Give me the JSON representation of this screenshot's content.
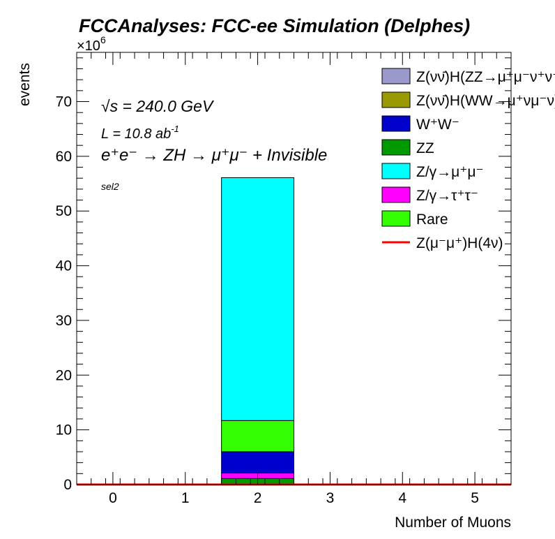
{
  "chart_data": {
    "type": "bar",
    "stacked": true,
    "title": "FCCAnalyses: FCC-ee Simulation (Delphes)",
    "xlabel": "Number of Muons",
    "ylabel": "events",
    "y_multiplier_base": "×10",
    "y_multiplier_exp": "6",
    "xlim": [
      -0.5,
      5.5
    ],
    "ylim": [
      0,
      79
    ],
    "x_ticks": [
      0,
      1,
      2,
      3,
      4,
      5
    ],
    "x_tick_labels": [
      "0",
      "1",
      "2",
      "3",
      "4",
      "5"
    ],
    "y_ticks": [
      0,
      10,
      20,
      30,
      40,
      50,
      60,
      70
    ],
    "y_tick_labels": [
      "0",
      "10",
      "20",
      "30",
      "40",
      "50",
      "60",
      "70"
    ],
    "bins": [
      [
        -0.5,
        0.5
      ],
      [
        0.5,
        1.5
      ],
      [
        1.5,
        2.5
      ],
      [
        2.5,
        3.5
      ],
      [
        3.5,
        4.5
      ],
      [
        4.5,
        5.5
      ]
    ],
    "stack_order": [
      "ZZ",
      "Z/γ→τ⁺τ⁻",
      "W⁺W⁻",
      "Rare",
      "Z/γ→μ⁺μ⁻"
    ],
    "series": [
      {
        "name": "Z(νν̄)H(ZZ→μ⁺μ⁻ν⁺ν⁻)",
        "color": "#9999cc",
        "values": [
          0,
          0,
          0,
          0,
          0,
          0
        ]
      },
      {
        "name": "Z(νν̄)H(WW→μ⁺νμ⁻ν)",
        "color": "#999900",
        "values": [
          0,
          0,
          0,
          0,
          0,
          0
        ]
      },
      {
        "name": "W⁺W⁻",
        "color": "#0000cc",
        "values": [
          0,
          0,
          3.9,
          0,
          0,
          0
        ]
      },
      {
        "name": "ZZ",
        "color": "#009900",
        "values": [
          0,
          0,
          1.1,
          0,
          0,
          0
        ]
      },
      {
        "name": "Z/γ→μ⁺μ⁻",
        "color": "#00ffff",
        "values": [
          0,
          0,
          44.4,
          0,
          0,
          0
        ]
      },
      {
        "name": "Z/γ→τ⁺τ⁻",
        "color": "#ff00ff",
        "values": [
          0,
          0,
          1.0,
          0,
          0,
          0
        ]
      },
      {
        "name": "Rare",
        "color": "#33ff00",
        "values": [
          0,
          0,
          5.7,
          0,
          0,
          0
        ]
      }
    ],
    "signal": {
      "name": "Z(μ⁻μ⁺)H(4ν)",
      "color": "#ff0000",
      "values": [
        0,
        0,
        0,
        0,
        0,
        0
      ]
    },
    "annotations": {
      "sqrt_s": "√s = 240.0 GeV",
      "lumi_base": "L = 10.8 ab",
      "lumi_exp": "-1",
      "process": "e⁺e⁻ → ZH → μ⁺μ⁻ + Invisible",
      "selection": "sel2"
    }
  }
}
